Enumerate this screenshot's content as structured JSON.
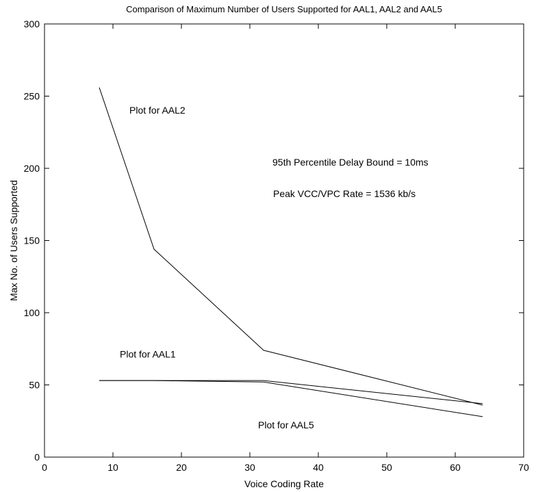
{
  "chart_data": {
    "type": "line",
    "title": "Comparison of Maximum Number of Users Supported for AAL1, AAL2 and AAL5",
    "xlabel": "Voice Coding Rate",
    "ylabel": "Max No. of Users Supported",
    "xlim": [
      0,
      70
    ],
    "ylim": [
      0,
      300
    ],
    "xticks": [
      0,
      10,
      20,
      30,
      40,
      50,
      60,
      70
    ],
    "yticks": [
      0,
      50,
      100,
      150,
      200,
      250,
      300
    ],
    "grid": false,
    "series": [
      {
        "x": [
          8,
          16,
          32,
          64
        ],
        "y": [
          256,
          144,
          74,
          36
        ]
      },
      {
        "x": [
          8,
          16,
          32,
          64
        ],
        "y": [
          53,
          53,
          53,
          37
        ]
      },
      {
        "x": [
          8,
          16,
          32,
          64
        ],
        "y": [
          53,
          53,
          52,
          28
        ]
      }
    ],
    "annotations": [
      {
        "text": "Plot for AAL2",
        "x": 12.4,
        "y": 238
      },
      {
        "text": "95th Percentile Delay Bound = 10ms",
        "x": 33.3,
        "y": 202
      },
      {
        "text": "Peak VCC/VPC Rate = 1536 kb/s",
        "x": 33.4,
        "y": 180
      },
      {
        "text": "Plot for AAL1",
        "x": 11.0,
        "y": 69
      },
      {
        "text": "Plot for AAL5",
        "x": 31.2,
        "y": 20
      }
    ]
  }
}
